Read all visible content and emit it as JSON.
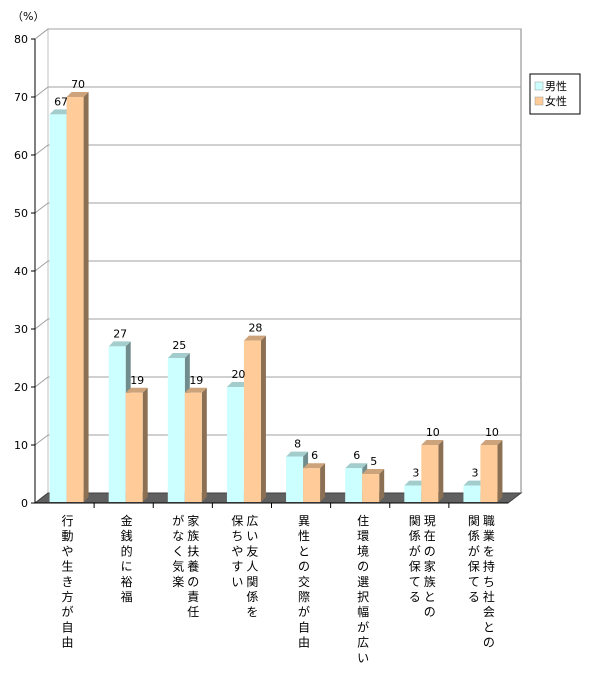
{
  "chart_data": {
    "type": "bar",
    "ylabel": "（%）",
    "ylim": [
      0,
      80
    ],
    "yticks": [
      "0",
      "10",
      "20",
      "30",
      "40",
      "50",
      "60",
      "70",
      "80"
    ],
    "grid": true,
    "legend_position": "right",
    "categories": [
      [
        "行動や生き方が自由"
      ],
      [
        "金銭的に裕福"
      ],
      [
        "家族扶養の責任",
        "がなく気楽"
      ],
      [
        "広い友人関係を",
        "保ちやすい"
      ],
      [
        "異性との交際が自由"
      ],
      [
        "住環境の選択幅が広い"
      ],
      [
        "現在の家族との",
        "関係が保てる"
      ],
      [
        "職業を持ち社会との",
        "関係が保てる"
      ]
    ],
    "series": [
      {
        "name": "男性",
        "values": [
          67,
          27,
          25,
          20,
          8,
          6,
          3,
          3
        ],
        "color": "#ccffff"
      },
      {
        "name": "女性",
        "values": [
          70,
          19,
          19,
          28,
          6,
          5,
          10,
          10
        ],
        "color": "#ffcc99"
      }
    ],
    "colors": {
      "floor": "#606060",
      "wall_grid": "#a0a0a0",
      "axis": "#000000"
    }
  }
}
